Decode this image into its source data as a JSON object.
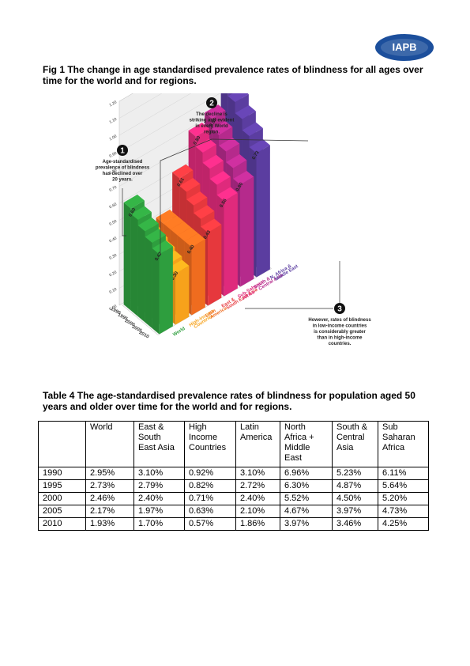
{
  "logo": {
    "text": "IAPB",
    "color": "#1c4f9c"
  },
  "figure": {
    "caption": "Fig 1   The change in age standardised prevalence rates of blindness for all ages over time for the world and for regions.",
    "callouts": [
      {
        "number": "1",
        "text": [
          "Age-standardised",
          "prevalence of blindness",
          "has declined over",
          "20 years."
        ]
      },
      {
        "number": "2",
        "text": [
          "The decline is",
          "striking and evident",
          "in every World",
          "region."
        ]
      },
      {
        "number": "3",
        "text": [
          "However, rates of blindness",
          "in low-income countries",
          "is considerably greater",
          "than in high-income",
          "countries."
        ]
      }
    ],
    "chart_data": {
      "type": "bar",
      "y_ticks": [
        "1.20",
        "1.10",
        "1.00",
        "0.90",
        "0.80",
        "0.70",
        "0.60",
        "0.50",
        "0.40",
        "0.30",
        "0.20",
        "0.10",
        "0.00"
      ],
      "years": [
        "1990",
        "1995",
        "2000",
        "2005",
        "2010"
      ],
      "series": [
        {
          "name": "World",
          "color": "#2e9e3e",
          "start": "0.60",
          "end": "0.47"
        },
        {
          "name": "High-income Countries",
          "color": "#f7a21b",
          "start": "0.38",
          "end": "0.30"
        },
        {
          "name": "Latin America",
          "color": "#ef6c1f",
          "start": "",
          "end": "0.40"
        },
        {
          "name": "East & South East Asia",
          "color": "#e6383d",
          "start": "0.61",
          "end": "0.43"
        },
        {
          "name": "Sub-Saharan Africa",
          "color": "#df2a7c",
          "start": "0.80",
          "end": "0.56"
        },
        {
          "name": "South & Central Asia",
          "color": "#b52a8c",
          "start": "0.85",
          "end": "0.60"
        },
        {
          "name": "N. Africa & Middle East",
          "color": "#5b3da0",
          "start": "0.99",
          "end": "0.73"
        }
      ],
      "region_labels": [
        {
          "lines": [
            "World"
          ],
          "color": "#2e9e3e"
        },
        {
          "lines": [
            "High-income",
            "Countries"
          ],
          "color": "#f7a21b"
        },
        {
          "lines": [
            "Latin",
            "America"
          ],
          "color": "#ef6c1f"
        },
        {
          "lines": [
            "East &",
            "South East Asia"
          ],
          "color": "#e6383d"
        },
        {
          "lines": [
            "Sub-Saharan",
            "Africa"
          ],
          "color": "#df2a7c"
        },
        {
          "lines": [
            "South &",
            "Central Asia"
          ],
          "color": "#b52a8c"
        },
        {
          "lines": [
            "N. Africa &",
            "Middle East"
          ],
          "color": "#5b3da0"
        }
      ]
    }
  },
  "table": {
    "caption": "Table 4   The age-standardised prevalence rates of blindness for population aged 50 years and older over time for the world and for regions.",
    "headers": [
      "",
      "World",
      "East & South East Asia",
      "High Income Countries",
      "Latin America",
      "North Africa + Middle East",
      "South & Central Asia",
      "Sub Saharan Africa"
    ],
    "rows": [
      [
        "1990",
        "2.95%",
        "3.10%",
        "0.92%",
        "3.10%",
        "6.96%",
        "5.23%",
        "6.11%"
      ],
      [
        "1995",
        "2.73%",
        "2.79%",
        "0.82%",
        "2.72%",
        "6.30%",
        "4.87%",
        "5.64%"
      ],
      [
        "2000",
        "2.46%",
        "2.40%",
        "0.71%",
        "2.40%",
        "5.52%",
        "4.50%",
        "5.20%"
      ],
      [
        "2005",
        "2.17%",
        "1.97%",
        "0.63%",
        "2.10%",
        "4.67%",
        "3.97%",
        "4.73%"
      ],
      [
        "2010",
        "1.93%",
        "1.70%",
        "0.57%",
        "1.86%",
        "3.97%",
        "3.46%",
        "4.25%"
      ]
    ]
  }
}
